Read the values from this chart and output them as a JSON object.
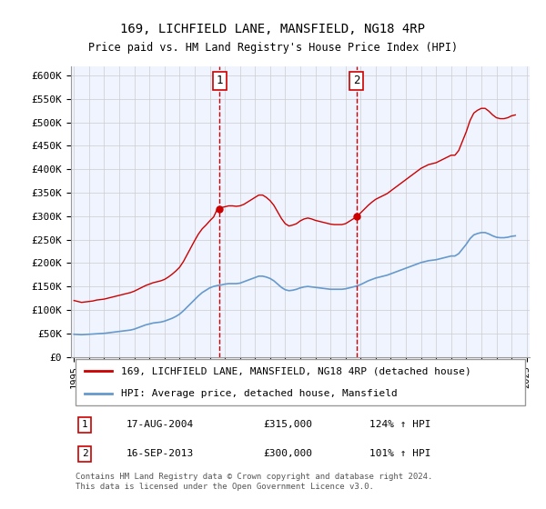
{
  "title": "169, LICHFIELD LANE, MANSFIELD, NG18 4RP",
  "subtitle": "Price paid vs. HM Land Registry's House Price Index (HPI)",
  "ylabel_ticks": [
    "£0",
    "£50K",
    "£100K",
    "£150K",
    "£200K",
    "£250K",
    "£300K",
    "£350K",
    "£400K",
    "£450K",
    "£500K",
    "£550K",
    "£600K"
  ],
  "ylim": [
    0,
    620000
  ],
  "yticks": [
    0,
    50000,
    100000,
    150000,
    200000,
    250000,
    300000,
    350000,
    400000,
    450000,
    500000,
    550000,
    600000
  ],
  "background_color": "#ffffff",
  "plot_bg_color": "#f0f4ff",
  "grid_color": "#cccccc",
  "line1_color": "#cc0000",
  "line2_color": "#6699cc",
  "vline_color": "#cc0000",
  "marker1_year": 2004.65,
  "marker2_year": 2013.72,
  "sale1": {
    "label": "1",
    "date": "17-AUG-2004",
    "price": 315000,
    "pct": "124%",
    "dir": "↑",
    "ref": "HPI"
  },
  "sale2": {
    "label": "2",
    "date": "16-SEP-2013",
    "price": 300000,
    "pct": "101%",
    "dir": "↑",
    "ref": "HPI"
  },
  "legend_line1": "169, LICHFIELD LANE, MANSFIELD, NG18 4RP (detached house)",
  "legend_line2": "HPI: Average price, detached house, Mansfield",
  "footer": "Contains HM Land Registry data © Crown copyright and database right 2024.\nThis data is licensed under the Open Government Licence v3.0.",
  "hpi_data": {
    "years": [
      1995.0,
      1995.25,
      1995.5,
      1995.75,
      1996.0,
      1996.25,
      1996.5,
      1996.75,
      1997.0,
      1997.25,
      1997.5,
      1997.75,
      1998.0,
      1998.25,
      1998.5,
      1998.75,
      1999.0,
      1999.25,
      1999.5,
      1999.75,
      2000.0,
      2000.25,
      2000.5,
      2000.75,
      2001.0,
      2001.25,
      2001.5,
      2001.75,
      2002.0,
      2002.25,
      2002.5,
      2002.75,
      2003.0,
      2003.25,
      2003.5,
      2003.75,
      2004.0,
      2004.25,
      2004.5,
      2004.75,
      2005.0,
      2005.25,
      2005.5,
      2005.75,
      2006.0,
      2006.25,
      2006.5,
      2006.75,
      2007.0,
      2007.25,
      2007.5,
      2007.75,
      2008.0,
      2008.25,
      2008.5,
      2008.75,
      2009.0,
      2009.25,
      2009.5,
      2009.75,
      2010.0,
      2010.25,
      2010.5,
      2010.75,
      2011.0,
      2011.25,
      2011.5,
      2011.75,
      2012.0,
      2012.25,
      2012.5,
      2012.75,
      2013.0,
      2013.25,
      2013.5,
      2013.75,
      2014.0,
      2014.25,
      2014.5,
      2014.75,
      2015.0,
      2015.25,
      2015.5,
      2015.75,
      2016.0,
      2016.25,
      2016.5,
      2016.75,
      2017.0,
      2017.25,
      2017.5,
      2017.75,
      2018.0,
      2018.25,
      2018.5,
      2018.75,
      2019.0,
      2019.25,
      2019.5,
      2019.75,
      2020.0,
      2020.25,
      2020.5,
      2020.75,
      2021.0,
      2021.25,
      2021.5,
      2021.75,
      2022.0,
      2022.25,
      2022.5,
      2022.75,
      2023.0,
      2023.25,
      2023.5,
      2023.75,
      2024.0,
      2024.25
    ],
    "values": [
      48000,
      47500,
      47000,
      47500,
      48000,
      48500,
      49000,
      49500,
      50000,
      51000,
      52000,
      53000,
      54000,
      55000,
      56000,
      57000,
      59000,
      62000,
      65000,
      68000,
      70000,
      72000,
      73000,
      74000,
      76000,
      79000,
      82000,
      86000,
      91000,
      98000,
      106000,
      114000,
      122000,
      130000,
      137000,
      142000,
      147000,
      150000,
      152000,
      153000,
      155000,
      156000,
      156000,
      156000,
      157000,
      160000,
      163000,
      166000,
      169000,
      172000,
      172000,
      170000,
      167000,
      162000,
      155000,
      148000,
      143000,
      141000,
      142000,
      144000,
      147000,
      149000,
      150000,
      149000,
      148000,
      147000,
      146000,
      145000,
      144000,
      144000,
      144000,
      144000,
      145000,
      147000,
      149000,
      151000,
      154000,
      158000,
      162000,
      165000,
      168000,
      170000,
      172000,
      174000,
      177000,
      180000,
      183000,
      186000,
      189000,
      192000,
      195000,
      198000,
      201000,
      203000,
      205000,
      206000,
      207000,
      209000,
      211000,
      213000,
      215000,
      215000,
      220000,
      230000,
      240000,
      252000,
      260000,
      263000,
      265000,
      265000,
      262000,
      258000,
      255000,
      254000,
      254000,
      255000,
      257000,
      258000
    ]
  },
  "property_data": {
    "years": [
      1995.0,
      1995.25,
      1995.5,
      1995.75,
      1996.0,
      1996.25,
      1996.5,
      1996.75,
      1997.0,
      1997.25,
      1997.5,
      1997.75,
      1998.0,
      1998.25,
      1998.5,
      1998.75,
      1999.0,
      1999.25,
      1999.5,
      1999.75,
      2000.0,
      2000.25,
      2000.5,
      2000.75,
      2001.0,
      2001.25,
      2001.5,
      2001.75,
      2002.0,
      2002.25,
      2002.5,
      2002.75,
      2003.0,
      2003.25,
      2003.5,
      2003.75,
      2004.0,
      2004.25,
      2004.5,
      2004.75,
      2005.0,
      2005.25,
      2005.5,
      2005.75,
      2006.0,
      2006.25,
      2006.5,
      2006.75,
      2007.0,
      2007.25,
      2007.5,
      2007.75,
      2008.0,
      2008.25,
      2008.5,
      2008.75,
      2009.0,
      2009.25,
      2009.5,
      2009.75,
      2010.0,
      2010.25,
      2010.5,
      2010.75,
      2011.0,
      2011.25,
      2011.5,
      2011.75,
      2012.0,
      2012.25,
      2012.5,
      2012.75,
      2013.0,
      2013.25,
      2013.5,
      2013.75,
      2014.0,
      2014.25,
      2014.5,
      2014.75,
      2015.0,
      2015.25,
      2015.5,
      2015.75,
      2016.0,
      2016.25,
      2016.5,
      2016.75,
      2017.0,
      2017.25,
      2017.5,
      2017.75,
      2018.0,
      2018.25,
      2018.5,
      2018.75,
      2019.0,
      2019.25,
      2019.5,
      2019.75,
      2020.0,
      2020.25,
      2020.5,
      2020.75,
      2021.0,
      2021.25,
      2021.5,
      2021.75,
      2022.0,
      2022.25,
      2022.5,
      2022.75,
      2023.0,
      2023.25,
      2023.5,
      2023.75,
      2024.0,
      2024.25
    ],
    "values": [
      120000,
      118000,
      116000,
      117000,
      118000,
      119000,
      121000,
      122000,
      123000,
      125000,
      127000,
      129000,
      131000,
      133000,
      135000,
      137000,
      140000,
      144000,
      148000,
      152000,
      155000,
      158000,
      160000,
      162000,
      165000,
      170000,
      176000,
      183000,
      191000,
      203000,
      218000,
      233000,
      248000,
      262000,
      273000,
      281000,
      290000,
      298000,
      315000,
      318000,
      320000,
      322000,
      322000,
      321000,
      322000,
      325000,
      330000,
      335000,
      340000,
      345000,
      345000,
      340000,
      333000,
      323000,
      309000,
      295000,
      284000,
      279000,
      281000,
      284000,
      290000,
      294000,
      296000,
      294000,
      291000,
      289000,
      287000,
      285000,
      283000,
      282000,
      282000,
      282000,
      284000,
      289000,
      294000,
      300000,
      307000,
      315000,
      323000,
      330000,
      336000,
      340000,
      344000,
      348000,
      354000,
      360000,
      366000,
      372000,
      378000,
      384000,
      390000,
      396000,
      402000,
      406000,
      410000,
      412000,
      414000,
      418000,
      422000,
      426000,
      430000,
      430000,
      440000,
      460000,
      480000,
      504000,
      520000,
      526000,
      530000,
      530000,
      524000,
      516000,
      510000,
      508000,
      508000,
      510000,
      514000,
      516000
    ]
  },
  "x_tick_years": [
    1995,
    1996,
    1997,
    1998,
    1999,
    2000,
    2001,
    2002,
    2003,
    2004,
    2005,
    2006,
    2007,
    2008,
    2009,
    2010,
    2011,
    2012,
    2013,
    2014,
    2015,
    2016,
    2017,
    2018,
    2019,
    2020,
    2021,
    2022,
    2023,
    2024,
    2025
  ]
}
